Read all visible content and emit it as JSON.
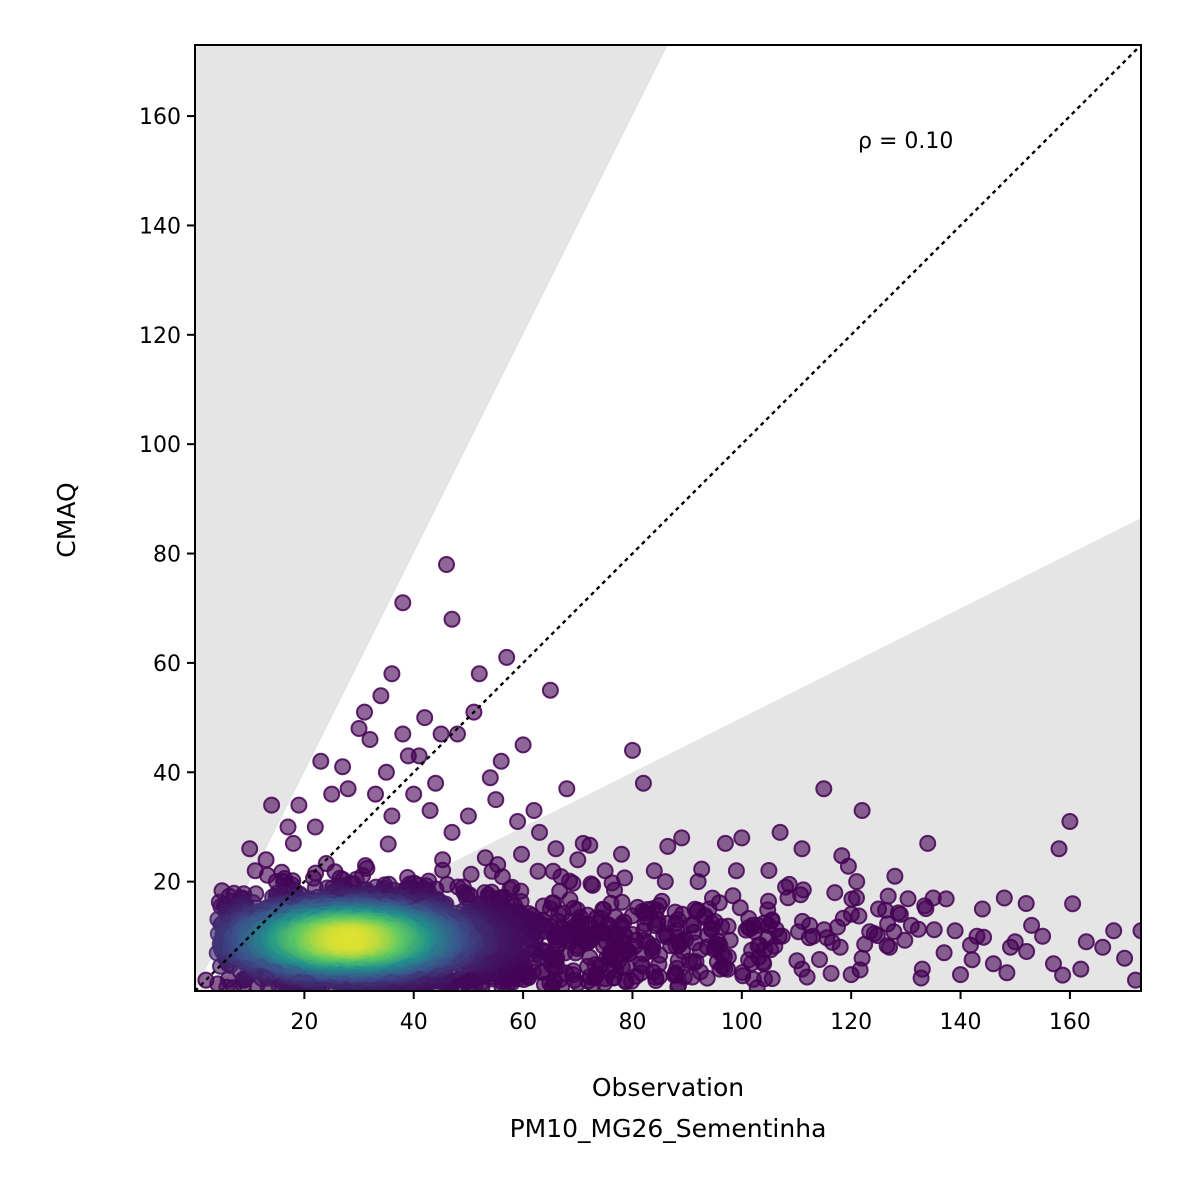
{
  "chart_data": {
    "type": "scatter",
    "xlabel": "Observation",
    "xlabel2": "PM10_MG26_Sementinha",
    "ylabel": "CMAQ",
    "xlim": [
      0,
      173
    ],
    "ylim": [
      0,
      173
    ],
    "x_ticks": [
      "20",
      "40",
      "60",
      "80",
      "100",
      "120",
      "140",
      "160"
    ],
    "y_ticks": [
      "20",
      "40",
      "60",
      "80",
      "100",
      "120",
      "140",
      "160"
    ],
    "annotation": "ρ = 0.10",
    "reference_line": {
      "slope": 1,
      "style": "dotted",
      "color": "#000000"
    },
    "shaded_regions": {
      "upper_slope": 2,
      "lower_slope": 0.5,
      "color": "#e5e5e5"
    },
    "colormap": "viridis",
    "grid": false,
    "points_outliers": [
      [
        46,
        78
      ],
      [
        47,
        68
      ],
      [
        38,
        71
      ],
      [
        57,
        61
      ],
      [
        52,
        58
      ],
      [
        36,
        58
      ],
      [
        65,
        55
      ],
      [
        34,
        54
      ],
      [
        31,
        51
      ],
      [
        51,
        51
      ],
      [
        30,
        48
      ],
      [
        42,
        50
      ],
      [
        45,
        47
      ],
      [
        48,
        47
      ],
      [
        32,
        46
      ],
      [
        38,
        47
      ],
      [
        60,
        45
      ],
      [
        80,
        44
      ],
      [
        39,
        43
      ],
      [
        41,
        43
      ],
      [
        56,
        42
      ],
      [
        23,
        42
      ],
      [
        68,
        37
      ],
      [
        82,
        38
      ],
      [
        115,
        37
      ],
      [
        122,
        33
      ],
      [
        160,
        31
      ],
      [
        14,
        34
      ],
      [
        19,
        34
      ],
      [
        134,
        27
      ],
      [
        158,
        26
      ],
      [
        107,
        29
      ],
      [
        97,
        27
      ],
      [
        100,
        28
      ],
      [
        89,
        28
      ],
      [
        111,
        26
      ],
      [
        128,
        21
      ],
      [
        125,
        15
      ],
      [
        10,
        26
      ],
      [
        135,
        17
      ],
      [
        148,
        17
      ],
      [
        121,
        20
      ],
      [
        117,
        18
      ],
      [
        152,
        16
      ],
      [
        144,
        15
      ],
      [
        131,
        12
      ],
      [
        139,
        11
      ],
      [
        155,
        10
      ],
      [
        168,
        11
      ],
      [
        173,
        11
      ],
      [
        163,
        9
      ],
      [
        150,
        9
      ],
      [
        143,
        10
      ],
      [
        127,
        8
      ],
      [
        118,
        8
      ],
      [
        113,
        10
      ],
      [
        103,
        12
      ],
      [
        94,
        15
      ],
      [
        86,
        20
      ],
      [
        92,
        20
      ],
      [
        99,
        22
      ],
      [
        146,
        5
      ],
      [
        157,
        5
      ],
      [
        162,
        4
      ],
      [
        133,
        4
      ],
      [
        140,
        3
      ],
      [
        170,
        6
      ],
      [
        172,
        2
      ],
      [
        2,
        2
      ],
      [
        6,
        5
      ],
      [
        9,
        16
      ],
      [
        13,
        24
      ],
      [
        17,
        30
      ],
      [
        27,
        41
      ],
      [
        28,
        37
      ],
      [
        36,
        32
      ],
      [
        40,
        36
      ],
      [
        44,
        38
      ],
      [
        54,
        39
      ],
      [
        55,
        35
      ],
      [
        62,
        33
      ],
      [
        71,
        27
      ],
      [
        78,
        25
      ],
      [
        84,
        22
      ],
      [
        108,
        19
      ],
      [
        122,
        6
      ],
      [
        137,
        7
      ],
      [
        129,
        14
      ],
      [
        153,
        12
      ],
      [
        166,
        8
      ],
      [
        104,
        5
      ],
      [
        96,
        4
      ],
      [
        88,
        3
      ],
      [
        76,
        6
      ],
      [
        120,
        3
      ],
      [
        111,
        4
      ],
      [
        75,
        22
      ],
      [
        70,
        24
      ],
      [
        66,
        26
      ],
      [
        63,
        29
      ],
      [
        59,
        31
      ],
      [
        50,
        32
      ],
      [
        47,
        29
      ],
      [
        43,
        33
      ],
      [
        35,
        40
      ],
      [
        33,
        36
      ],
      [
        25,
        36
      ],
      [
        22,
        30
      ],
      [
        18,
        27
      ],
      [
        11,
        22
      ]
    ],
    "density_cloud": {
      "center": [
        28,
        9.5
      ],
      "spread_x": 15,
      "spread_y": 4.5,
      "tail_to_x": 125,
      "n_points": 2600
    }
  }
}
